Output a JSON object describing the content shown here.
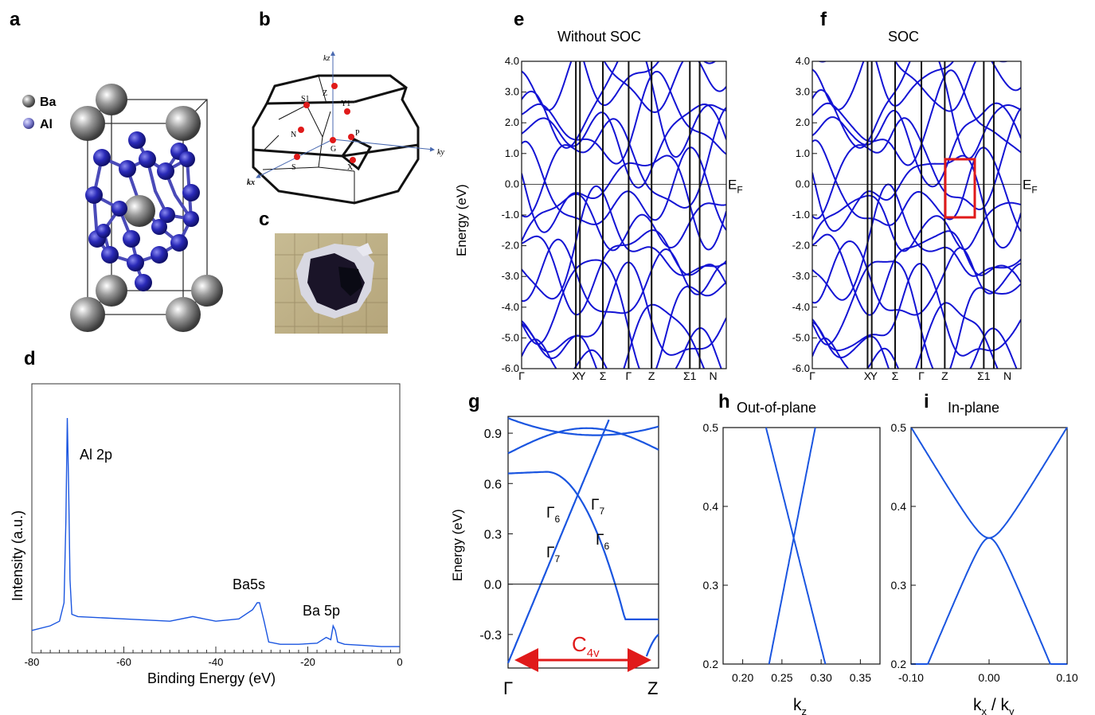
{
  "panel_letters": {
    "a": "a",
    "b": "b",
    "c": "c",
    "d": "d",
    "e": "e",
    "f": "f",
    "g": "g",
    "h": "h",
    "i": "i"
  },
  "crystal": {
    "legend": [
      {
        "label": "Ba",
        "color": "#808080"
      },
      {
        "label": "Al",
        "color": "#6f6fc8"
      }
    ]
  },
  "bz": {
    "kz": "kz",
    "ky": "ky",
    "kx": "kx",
    "points": [
      {
        "label": "Z"
      },
      {
        "label": "S1"
      },
      {
        "label": "Y1"
      },
      {
        "label": "N"
      },
      {
        "label": "P"
      },
      {
        "label": "G"
      },
      {
        "label": "S"
      },
      {
        "label": "X"
      }
    ]
  },
  "colors": {
    "band": "#1414d4",
    "accent": "#e01a1a",
    "line": "#1a55e0"
  },
  "chart_data": [
    {
      "panel": "d",
      "type": "line",
      "xlabel": "Binding Energy (eV)",
      "ylabel": "Intensity (a.u.)",
      "xlim": [
        -80,
        0
      ],
      "xticks": [
        "-80",
        "-60",
        "-40",
        "-20",
        "0"
      ],
      "annotations": [
        "Al 2p",
        "Ba5s",
        "Ba 5p"
      ],
      "series": [
        {
          "x": [
            -80,
            -76,
            -74,
            -73,
            -72.6,
            -72.3,
            -72,
            -71.7,
            -71.3,
            -70,
            -60,
            -50,
            -45,
            -40,
            -35,
            -32,
            -31,
            -30.5,
            -29.5,
            -28.5,
            -26,
            -22,
            -18,
            -16,
            -15,
            -14.5,
            -14,
            -13.5,
            -12,
            -8,
            -4,
            0
          ],
          "y": [
            0.08,
            0.1,
            0.12,
            0.2,
            0.55,
            1.0,
            0.7,
            0.3,
            0.15,
            0.14,
            0.13,
            0.12,
            0.14,
            0.12,
            0.13,
            0.17,
            0.2,
            0.2,
            0.12,
            0.03,
            0.02,
            0.02,
            0.025,
            0.05,
            0.04,
            0.1,
            0.08,
            0.03,
            0.02,
            0.015,
            0.01,
            0.01
          ]
        }
      ]
    },
    {
      "panel": "e",
      "type": "line",
      "title": "Without SOC",
      "ylabel": "Energy (eV)",
      "ylim": [
        -6,
        4
      ],
      "yticks": [
        "-6.0",
        "-5.0",
        "-4.0",
        "-3.0",
        "-2.0",
        "-1.0",
        "0.0",
        "1.0",
        "2.0",
        "3.0",
        "4.0"
      ],
      "kpath": [
        "Γ",
        "X",
        "Y",
        "Σ",
        "Γ",
        "Z",
        "Σ1",
        "N"
      ],
      "fermi_label": "E_F",
      "sub": "F",
      "fermi_main": "E"
    },
    {
      "panel": "f",
      "type": "line",
      "title": "SOC",
      "ylabel": "",
      "ylim": [
        -6,
        4
      ],
      "yticks": [
        "-6.0",
        "-5.0",
        "-4.0",
        "-3.0",
        "-2.0",
        "-1.0",
        "0.0",
        "1.0",
        "2.0",
        "3.0",
        "4.0"
      ],
      "kpath": [
        "Γ",
        "X",
        "Y",
        "Σ",
        "Γ",
        "Z",
        "Σ1",
        "N"
      ],
      "fermi_main": "E",
      "sub": "F"
    },
    {
      "panel": "g",
      "type": "line",
      "ylabel": "Energy (eV)",
      "ylim": [
        -0.5,
        1.0
      ],
      "yticks": [
        "-0.3",
        "0.0",
        "0.3",
        "0.6",
        "0.9"
      ],
      "xticks": [
        "Γ",
        "Z"
      ],
      "labels": {
        "G6a": "Γ",
        "G7a": "Γ",
        "G7b": "Γ",
        "G6b": "Γ",
        "s6": "6",
        "s7": "7",
        "c": "C",
        "cs": "4v"
      }
    },
    {
      "panel": "h",
      "type": "line",
      "title": "Out-of-plane",
      "xlabel": "k",
      "xlabel_sub": "z",
      "xlim": [
        0.175,
        0.375
      ],
      "ylim": [
        0.2,
        0.5
      ],
      "xticks": [
        "0.20",
        "0.25",
        "0.30",
        "0.35"
      ],
      "yticks": [
        "0.2",
        "0.3",
        "0.4",
        "0.5"
      ],
      "crossing": {
        "x": 0.265,
        "y": 0.36
      }
    },
    {
      "panel": "i",
      "type": "line",
      "title": "In-plane",
      "xlabel": "k",
      "xlabel_sub1": "x",
      "xlabel_mid": " / k",
      "xlabel_sub2": "y",
      "xlim": [
        -0.1,
        0.1
      ],
      "ylim": [
        0.2,
        0.5
      ],
      "xticks": [
        "-0.10",
        "0.00",
        "0.10"
      ],
      "yticks": [
        "0.2",
        "0.3",
        "0.4",
        "0.5"
      ],
      "degeneracy": {
        "x": 0.0,
        "y": 0.36
      }
    }
  ]
}
